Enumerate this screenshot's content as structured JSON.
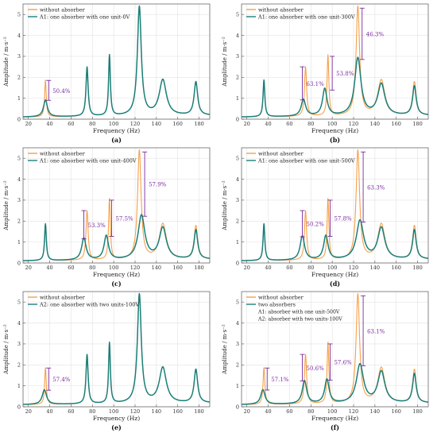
{
  "colors": {
    "orange": "#f5a04a",
    "teal": "#1a7f7a",
    "purple": "#7a2a9e",
    "grid": "#e2e2e2"
  },
  "chart_data": [
    {
      "type": "line",
      "panel_label": "(a)",
      "xlabel": "Frequency (Hz)",
      "ylabel": "Amplitude / m·s⁻²",
      "xlim": [
        15,
        190
      ],
      "ylim": [
        0,
        5.5
      ],
      "xticks": [
        20,
        40,
        60,
        80,
        100,
        120,
        140,
        160,
        180
      ],
      "yticks": [
        0,
        1,
        2,
        3,
        4,
        5
      ],
      "grid": true,
      "legend_position": "top-left",
      "series": [
        {
          "name": "without absorber",
          "color": "#f5a04a",
          "peaks": [
            [
              36,
              1.85,
              0.9
            ],
            [
              75,
              2.45,
              1.2
            ],
            [
              96,
              3.0,
              1.0
            ],
            [
              124,
              5.3,
              2.2
            ],
            [
              146,
              1.8,
              4.0
            ],
            [
              177,
              1.7,
              2.0
            ]
          ]
        },
        {
          "name": "A1: one absorber with one unit-0V",
          "color": "#1a7f7a",
          "peaks": [
            [
              36,
              0.9,
              2.2
            ],
            [
              75,
              2.45,
              1.2
            ],
            [
              96,
              3.0,
              1.0
            ],
            [
              124,
              5.3,
              2.2
            ],
            [
              146,
              1.8,
              4.0
            ],
            [
              177,
              1.7,
              2.0
            ]
          ]
        }
      ],
      "annotations": [
        {
          "text": "50.4%",
          "x": 39,
          "from": 1.85,
          "to": 0.9
        }
      ]
    },
    {
      "type": "line",
      "panel_label": "(b)",
      "xlabel": "Frequency (Hz)",
      "ylabel": "Amplitude / m·s⁻²",
      "xlim": [
        15,
        190
      ],
      "ylim": [
        0,
        5.5
      ],
      "xticks": [
        20,
        40,
        60,
        80,
        100,
        120,
        140,
        160,
        180
      ],
      "yticks": [
        0,
        1,
        2,
        3,
        4,
        5
      ],
      "grid": true,
      "legend_position": "top-left",
      "series": [
        {
          "name": "without absorber",
          "color": "#f5a04a",
          "peaks": [
            [
              36,
              1.85,
              1.0
            ],
            [
              75,
              2.45,
              1.2
            ],
            [
              96,
              3.0,
              1.0
            ],
            [
              124,
              5.3,
              2.0
            ],
            [
              146,
              1.8,
              4.0
            ],
            [
              177,
              1.7,
              2.0
            ]
          ]
        },
        {
          "name": "A1: one absorber with one unit-300V",
          "color": "#1a7f7a",
          "peaks": [
            [
              36,
              1.85,
              1.0
            ],
            [
              73,
              0.9,
              2.5
            ],
            [
              93,
              1.4,
              2.5
            ],
            [
              124,
              2.85,
              3.5
            ],
            [
              146,
              1.6,
              4.0
            ],
            [
              177,
              1.5,
              2.0
            ]
          ]
        }
      ],
      "annotations": [
        {
          "text": "63.1%",
          "x": 72,
          "from": 2.5,
          "to": 0.92
        },
        {
          "text": "53.8%",
          "x": 100,
          "from": 3.0,
          "to": 1.39
        },
        {
          "text": "46.3%",
          "x": 128,
          "from": 5.3,
          "to": 2.85
        }
      ]
    },
    {
      "type": "line",
      "panel_label": "(c)",
      "xlabel": "Frequency (Hz)",
      "ylabel": "Amplitude / m·s⁻²",
      "xlim": [
        15,
        190
      ],
      "ylim": [
        0,
        5.5
      ],
      "xticks": [
        20,
        40,
        60,
        80,
        100,
        120,
        140,
        160,
        180
      ],
      "yticks": [
        0,
        1,
        2,
        3,
        4,
        5
      ],
      "grid": true,
      "legend_position": "top-left",
      "series": [
        {
          "name": "without absorber",
          "color": "#f5a04a",
          "peaks": [
            [
              36,
              1.85,
              1.0
            ],
            [
              75,
              2.45,
              1.2
            ],
            [
              96,
              3.0,
              1.0
            ],
            [
              124,
              5.3,
              2.0
            ],
            [
              146,
              1.8,
              4.0
            ],
            [
              177,
              1.7,
              2.0
            ]
          ]
        },
        {
          "name": "A1: one absorber with one unit-400V",
          "color": "#1a7f7a",
          "peaks": [
            [
              36,
              1.85,
              1.0
            ],
            [
              72,
              1.15,
              2.5
            ],
            [
              93,
              1.25,
              2.5
            ],
            [
              126,
              2.2,
              3.8
            ],
            [
              146,
              1.6,
              4.0
            ],
            [
              177,
              1.5,
              2.0
            ]
          ]
        }
      ],
      "annotations": [
        {
          "text": "53.3%",
          "x": 72,
          "from": 2.5,
          "to": 1.15
        },
        {
          "text": "57.5%",
          "x": 98,
          "from": 3.0,
          "to": 1.27
        },
        {
          "text": "57.9%",
          "x": 129,
          "from": 5.3,
          "to": 2.23
        }
      ]
    },
    {
      "type": "line",
      "panel_label": "(d)",
      "xlabel": "Frequency (Hz)",
      "ylabel": "Amplitude / m·s⁻²",
      "xlim": [
        15,
        190
      ],
      "ylim": [
        0,
        5.5
      ],
      "xticks": [
        20,
        40,
        60,
        80,
        100,
        120,
        140,
        160,
        180
      ],
      "yticks": [
        0,
        1,
        2,
        3,
        4,
        5
      ],
      "grid": true,
      "legend_position": "top-left",
      "series": [
        {
          "name": "without absorber",
          "color": "#f5a04a",
          "peaks": [
            [
              36,
              1.85,
              1.0
            ],
            [
              75,
              2.45,
              1.2
            ],
            [
              96,
              3.0,
              1.0
            ],
            [
              124,
              5.3,
              2.0
            ],
            [
              146,
              1.8,
              4.0
            ],
            [
              177,
              1.7,
              2.0
            ]
          ]
        },
        {
          "name": "A1: one absorber with one unit-500V",
          "color": "#1a7f7a",
          "peaks": [
            [
              36,
              1.85,
              1.0
            ],
            [
              72,
              1.25,
              2.5
            ],
            [
              94,
              1.25,
              2.5
            ],
            [
              126,
              1.95,
              4.0
            ],
            [
              146,
              1.6,
              4.0
            ],
            [
              177,
              1.5,
              2.0
            ]
          ]
        }
      ],
      "annotations": [
        {
          "text": "50.2%",
          "x": 72,
          "from": 2.5,
          "to": 1.25
        },
        {
          "text": "57.8%",
          "x": 98,
          "from": 3.0,
          "to": 1.27
        },
        {
          "text": "63.3%",
          "x": 129,
          "from": 5.3,
          "to": 1.95
        }
      ]
    },
    {
      "type": "line",
      "panel_label": "(e)",
      "xlabel": "Frequency (Hz)",
      "ylabel": "Amplitude / m·s⁻²",
      "xlim": [
        15,
        190
      ],
      "ylim": [
        0,
        5.5
      ],
      "xticks": [
        20,
        40,
        60,
        80,
        100,
        120,
        140,
        160,
        180
      ],
      "yticks": [
        0,
        1,
        2,
        3,
        4,
        5
      ],
      "grid": true,
      "legend_position": "top-left",
      "series": [
        {
          "name": "without absorber",
          "color": "#f5a04a",
          "peaks": [
            [
              36,
              1.85,
              0.9
            ],
            [
              75,
              2.45,
              1.2
            ],
            [
              96,
              3.0,
              1.0
            ],
            [
              124,
              5.3,
              2.2
            ],
            [
              146,
              1.8,
              4.0
            ],
            [
              177,
              1.7,
              2.0
            ]
          ]
        },
        {
          "name": "A2: one absorber with two units-100V",
          "color": "#1a7f7a",
          "peaks": [
            [
              35,
              0.8,
              2.4
            ],
            [
              75,
              2.45,
              1.2
            ],
            [
              96,
              3.0,
              1.0
            ],
            [
              124,
              5.3,
              2.2
            ],
            [
              146,
              1.8,
              4.0
            ],
            [
              177,
              1.7,
              2.0
            ]
          ]
        }
      ],
      "annotations": [
        {
          "text": "57.4%",
          "x": 39,
          "from": 1.85,
          "to": 0.79
        }
      ]
    },
    {
      "type": "line",
      "panel_label": "(f)",
      "xlabel": "Frequency (Hz)",
      "ylabel": "Amplitude / m·s⁻²",
      "xlim": [
        15,
        190
      ],
      "ylim": [
        0,
        5.5
      ],
      "xticks": [
        20,
        40,
        60,
        80,
        100,
        120,
        140,
        160,
        180
      ],
      "yticks": [
        0,
        1,
        2,
        3,
        4,
        5
      ],
      "grid": true,
      "legend_position": "top-left",
      "legend_notes": [
        "A1: absorber with one unit-500V",
        "A2: absorber with two units-100V"
      ],
      "series": [
        {
          "name": "without absorber",
          "color": "#f5a04a",
          "peaks": [
            [
              36,
              1.85,
              1.0
            ],
            [
              75,
              2.45,
              1.2
            ],
            [
              96,
              3.0,
              1.0
            ],
            [
              124,
              5.3,
              2.0
            ],
            [
              146,
              1.8,
              4.0
            ],
            [
              177,
              1.7,
              2.0
            ]
          ]
        },
        {
          "name": "two absorbers",
          "color": "#1a7f7a",
          "peaks": [
            [
              35,
              0.8,
              2.4
            ],
            [
              74,
              1.2,
              2.5
            ],
            [
              95,
              1.25,
              2.5
            ],
            [
              126,
              1.95,
              4.0
            ],
            [
              146,
              1.6,
              4.0
            ],
            [
              177,
              1.5,
              2.0
            ]
          ]
        }
      ],
      "annotations": [
        {
          "text": "57.1%",
          "x": 39,
          "from": 1.85,
          "to": 0.8
        },
        {
          "text": "50.6%",
          "x": 72,
          "from": 2.5,
          "to": 1.23
        },
        {
          "text": "57.6%",
          "x": 98,
          "from": 3.0,
          "to": 1.27
        },
        {
          "text": "63.1%",
          "x": 129,
          "from": 5.3,
          "to": 1.96
        }
      ]
    }
  ]
}
